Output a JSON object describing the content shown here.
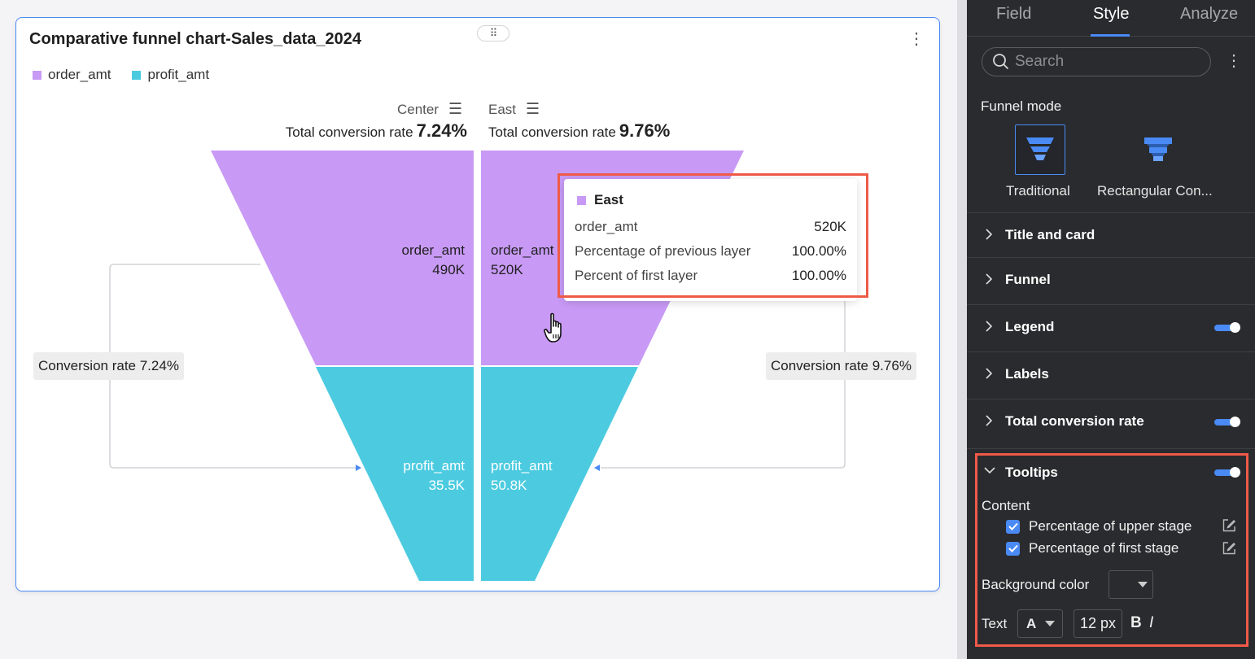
{
  "card": {
    "title": "Comparative funnel chart-Sales_data_2024",
    "legend": [
      {
        "label": "order_amt",
        "color": "#c89af5"
      },
      {
        "label": "profit_amt",
        "color": "#4ccbe0"
      }
    ]
  },
  "chart_data": {
    "type": "funnel",
    "title": "Comparative funnel chart-Sales_data_2024",
    "stages": [
      "order_amt",
      "profit_amt"
    ],
    "series": [
      {
        "name": "Center",
        "values": [
          490000,
          35500
        ],
        "value_labels": [
          "490K",
          "35.5K"
        ],
        "total_conversion_label": "Total conversion rate",
        "total_conversion_rate": "7.24%",
        "conversion_label": "Conversion rate 7.24%"
      },
      {
        "name": "East",
        "values": [
          520000,
          50800
        ],
        "value_labels": [
          "520K",
          "50.8K"
        ],
        "total_conversion_label": "Total conversion rate",
        "total_conversion_rate": "9.76%",
        "conversion_label": "Conversion rate 9.76%"
      }
    ],
    "colors": {
      "order_amt": "#c89af5",
      "profit_amt": "#4ccbe0"
    }
  },
  "tooltip": {
    "title": "East",
    "rows": [
      {
        "label": "order_amt",
        "value": "520K"
      },
      {
        "label": "Percentage of previous layer",
        "value": "100.00%"
      },
      {
        "label": "Percent of first layer",
        "value": "100.00%"
      }
    ]
  },
  "panel": {
    "tabs": [
      "Field",
      "Style",
      "Analyze"
    ],
    "active_tab": "Style",
    "search_placeholder": "Search",
    "funnel_mode_label": "Funnel mode",
    "modes": [
      "Traditional",
      "Rectangular Con..."
    ],
    "sections": [
      {
        "label": "Title and card",
        "toggle": false
      },
      {
        "label": "Funnel",
        "toggle": false
      },
      {
        "label": "Legend",
        "toggle": true
      },
      {
        "label": "Labels",
        "toggle": false
      },
      {
        "label": "Total conversion rate",
        "toggle": true
      }
    ],
    "tooltips": {
      "label": "Tooltips",
      "enabled": true,
      "content_label": "Content",
      "options": [
        "Percentage of upper stage",
        "Percentage of first stage"
      ],
      "background_color_label": "Background color",
      "text_label": "Text",
      "font_glyph": "A",
      "font_size": "12 px",
      "bold": "B",
      "italic": "I"
    }
  }
}
